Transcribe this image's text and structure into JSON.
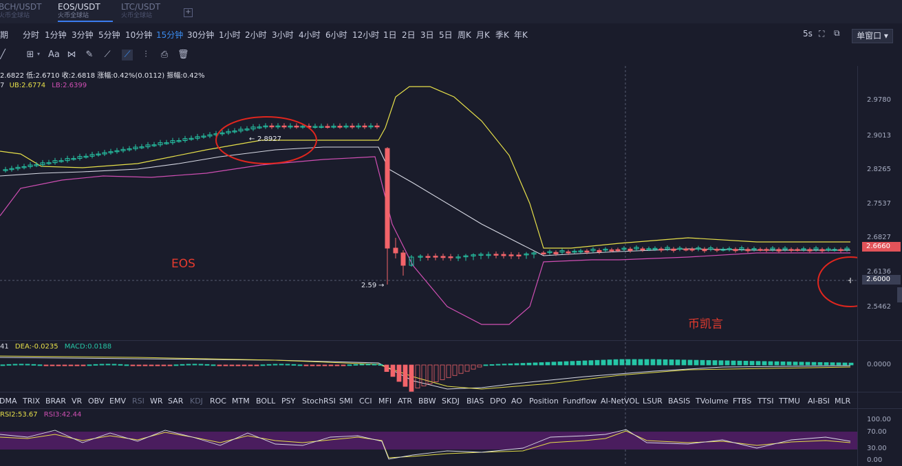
{
  "tabs": [
    {
      "name": "BCH/USDT",
      "sub": "火币全球站",
      "active": false
    },
    {
      "name": "EOS/USDT",
      "sub": "火币全球站",
      "active": true
    },
    {
      "name": "LTC/USDT",
      "sub": "火币全球站",
      "active": false
    }
  ],
  "add_tab": "+",
  "periods": [
    "周期",
    "分时",
    "1分钟",
    "3分钟",
    "5分钟",
    "10分钟",
    "15分钟",
    "30分钟",
    "1小时",
    "2小时",
    "3小时",
    "4小时",
    "6小时",
    "12小时",
    "1日",
    "2日",
    "3日",
    "5日",
    "周K",
    "月K",
    "季K",
    "年K"
  ],
  "active_period": "15分钟",
  "top_right": {
    "refresh": "5s",
    "window_mode": "单窗口"
  },
  "tools": [
    "trend-icon",
    "crosshair-icon",
    "text-icon",
    "pattern-icon",
    "ruler-icon",
    "brush-icon",
    "magnet-icon",
    "indicator-icon",
    "screenshot-icon",
    "trash-icon"
  ],
  "ohlc_text": "2.6822 低:2.6710 收:2.6818 涨幅:0.42%(0.0112) 振幅:0.42%",
  "boll": {
    "mb": "7",
    "ub": "UB:2.6774",
    "lb": "LB:2.6399"
  },
  "macd": {
    "dif": "41",
    "dea": "DEA:-0.0235",
    "macd": "MACD:0.0188"
  },
  "rsi": {
    "rsi2": "RSI2:53.67",
    "rsi3": "RSI3:42.44"
  },
  "price_ticks": [
    "2.9780",
    "2.9013",
    "2.8265",
    "2.7537",
    "2.6827",
    "2.6136",
    "2.5462"
  ],
  "current_price": "2.6660",
  "crosshair_price": "2.6000",
  "macd_tick": "0.0000",
  "rsi_ticks": [
    "100.00",
    "70.00",
    "30.00",
    "0.00"
  ],
  "marks": {
    "high": "2.8927",
    "low": "2.59"
  },
  "indicators": [
    "DMA",
    "TRIX",
    "BRAR",
    "VR",
    "OBV",
    "EMV",
    "RSI",
    "WR",
    "SAR",
    "KDJ",
    "ROC",
    "MTM",
    "BOLL",
    "PSY",
    "StochRSI",
    "SMI",
    "CCI",
    "MFI",
    "ATR",
    "BBW",
    "SKDJ",
    "BIAS",
    "DPO",
    "AO",
    "Position",
    "Fundflow",
    "AI-NetVOL",
    "LSUR",
    "BASIS",
    "TVolume",
    "FTBS",
    "TTSI",
    "TTMU",
    "AI-BSI",
    "MLR"
  ],
  "dim_indicators": [
    "RSI",
    "KDJ"
  ],
  "annotations": {
    "left": "EOS",
    "right": "币凯言"
  },
  "colors": {
    "up": "#26c6a6",
    "down": "#f2646a",
    "ub": "#e7e04a",
    "mb": "#d9dbe6",
    "lb": "#d04fb4",
    "accent": "#3b8cf0"
  }
}
